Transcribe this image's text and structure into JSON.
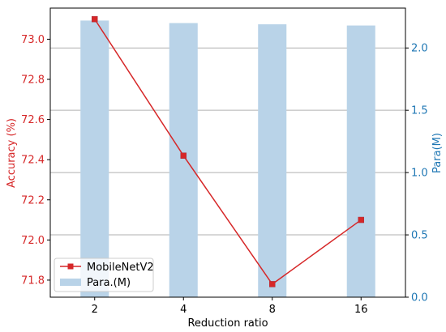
{
  "chart_data": {
    "type": "bar+line",
    "categories": [
      "2",
      "4",
      "8",
      "16"
    ],
    "xlabel": "Reduction ratio",
    "ylabel_left": "Accuracy (%)",
    "ylabel_right": "Para(M)",
    "left_axis": {
      "ylim": [
        71.715,
        73.155
      ],
      "ticks": [
        "71.8",
        "72.0",
        "72.2",
        "72.4",
        "72.6",
        "72.8",
        "73.0"
      ]
    },
    "right_axis": {
      "ylim": [
        0.0,
        2.32
      ],
      "ticks": [
        "0.0",
        "0.5",
        "1.0",
        "1.5",
        "2.0"
      ]
    },
    "series": [
      {
        "name": "MobileNetV2",
        "kind": "line",
        "axis": "left",
        "values": [
          73.1,
          72.42,
          71.78,
          72.1
        ],
        "color": "#d62728",
        "marker": "square"
      },
      {
        "name": "Para.(M)",
        "kind": "bar",
        "axis": "right",
        "values": [
          2.22,
          2.2,
          2.19,
          2.18
        ],
        "color": "#b9d3e8"
      }
    ],
    "grid": "horizontal",
    "legend_position": "lower-left",
    "colors": {
      "left_axis": "#d62728",
      "right_axis": "#1f77b4"
    }
  }
}
